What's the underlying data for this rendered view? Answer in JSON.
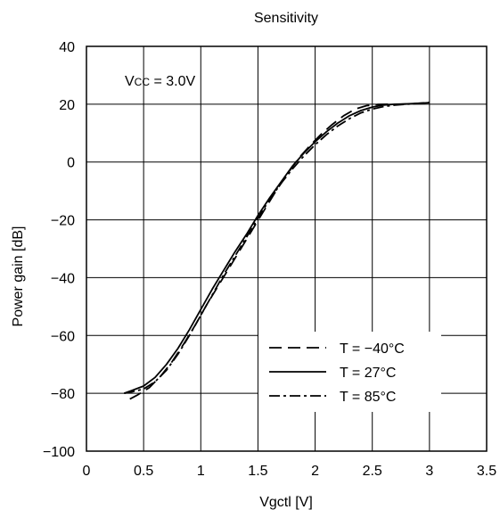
{
  "chart_data": {
    "type": "line",
    "title": "Sensitivity",
    "xlabel": "Vgctl [V]",
    "ylabel": "Power gain [dB]",
    "xlim": [
      0,
      3.5
    ],
    "ylim": [
      -100,
      40
    ],
    "xticks": [
      0,
      0.5,
      1,
      1.5,
      2,
      2.5,
      3,
      3.5
    ],
    "xtick_labels": [
      "0",
      "0.5",
      "1",
      "1.5",
      "2",
      "2.5",
      "3",
      "3.5"
    ],
    "yticks": [
      -100,
      -80,
      -60,
      -40,
      -20,
      0,
      20,
      40
    ],
    "ytick_labels": [
      "−100",
      "−80",
      "−60",
      "−40",
      "−20",
      "0",
      "20",
      "40"
    ],
    "grid": true,
    "legend_position": "bottom-right",
    "annotation": {
      "main": "V",
      "sub": "CC",
      "rest": " = 3.0V"
    },
    "series": [
      {
        "name": "T = −40°C",
        "style": "dashed",
        "x": [
          0.38,
          0.45,
          0.55,
          0.65,
          0.75,
          0.85,
          0.95,
          1.05,
          1.15,
          1.25,
          1.35,
          1.45,
          1.55,
          1.65,
          1.75,
          1.85,
          1.95,
          2.05,
          2.15,
          2.25,
          2.35,
          2.45,
          2.55,
          2.65,
          2.75,
          2.85,
          3.0
        ],
        "y": [
          -82,
          -80.5,
          -78,
          -74,
          -69,
          -63,
          -56.5,
          -49.5,
          -43,
          -36.5,
          -30,
          -23.5,
          -17,
          -10.5,
          -4.5,
          1,
          5.5,
          9.5,
          13,
          16,
          18.3,
          19.5,
          19.9,
          20,
          20,
          20.1,
          20.3
        ]
      },
      {
        "name": "T = 27°C",
        "style": "solid",
        "x": [
          0.33,
          0.4,
          0.5,
          0.6,
          0.7,
          0.8,
          0.9,
          1.0,
          1.1,
          1.2,
          1.3,
          1.4,
          1.5,
          1.6,
          1.7,
          1.8,
          1.9,
          2.0,
          2.1,
          2.2,
          2.3,
          2.4,
          2.5,
          2.6,
          2.7,
          2.8,
          2.9,
          3.0
        ],
        "y": [
          -80,
          -79,
          -77.5,
          -74.5,
          -70,
          -64.5,
          -58,
          -51,
          -44,
          -37.5,
          -31,
          -25,
          -18.5,
          -12.5,
          -7,
          -1.5,
          3,
          7,
          10.5,
          13.5,
          16,
          17.8,
          19,
          19.7,
          20,
          20.1,
          20.3,
          20.5
        ]
      },
      {
        "name": "T = 85°C",
        "style": "dashdot",
        "x": [
          0.33,
          0.4,
          0.5,
          0.6,
          0.7,
          0.8,
          0.9,
          1.0,
          1.1,
          1.2,
          1.3,
          1.4,
          1.5,
          1.6,
          1.7,
          1.8,
          1.9,
          2.0,
          2.1,
          2.2,
          2.3,
          2.4,
          2.5,
          2.6,
          2.7,
          2.8,
          2.9,
          3.0
        ],
        "y": [
          -80,
          -79.5,
          -78.5,
          -76,
          -72,
          -66.5,
          -60,
          -53,
          -46,
          -39,
          -32.5,
          -26,
          -19.5,
          -13,
          -7.5,
          -2.5,
          2,
          6,
          9.5,
          12.5,
          15,
          17,
          18.3,
          19.2,
          19.7,
          20,
          20.3,
          20.6
        ]
      }
    ]
  }
}
